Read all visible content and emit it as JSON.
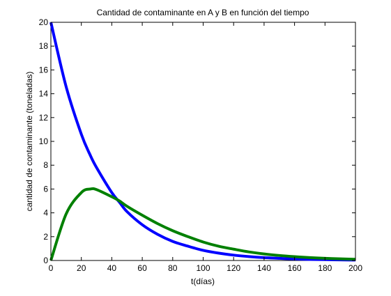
{
  "chart_data": {
    "type": "line",
    "title": "Cantidad de contaminante en A y B en función del tiempo",
    "xlabel": "t(días)",
    "ylabel": "cantidad de contaminante (toneladas)",
    "xlim": [
      0,
      200
    ],
    "ylim": [
      0,
      20
    ],
    "xticks": [
      0,
      20,
      40,
      60,
      80,
      100,
      120,
      140,
      160,
      180,
      200
    ],
    "yticks": [
      0,
      2,
      4,
      6,
      8,
      10,
      12,
      14,
      16,
      18,
      20
    ],
    "grid": false,
    "legend": "none",
    "x": [
      0,
      10,
      20,
      26,
      30,
      40,
      45,
      50,
      60,
      70,
      80,
      90,
      100,
      110,
      120,
      130,
      140,
      150,
      160,
      170,
      180,
      190,
      200
    ],
    "series": [
      {
        "color": "#0000ff",
        "values": [
          20.0,
          14.6,
          10.6,
          8.8,
          7.8,
          5.7,
          4.9,
          4.1,
          3.0,
          2.2,
          1.6,
          1.2,
          0.85,
          0.62,
          0.45,
          0.33,
          0.24,
          0.18,
          0.13,
          0.09,
          0.07,
          0.05,
          0.04
        ]
      },
      {
        "color": "#008000",
        "values": [
          0.0,
          3.9,
          5.7,
          6.0,
          5.95,
          5.35,
          5.0,
          4.55,
          3.8,
          3.1,
          2.5,
          2.0,
          1.55,
          1.2,
          0.95,
          0.72,
          0.55,
          0.42,
          0.32,
          0.24,
          0.18,
          0.14,
          0.1
        ]
      }
    ]
  }
}
